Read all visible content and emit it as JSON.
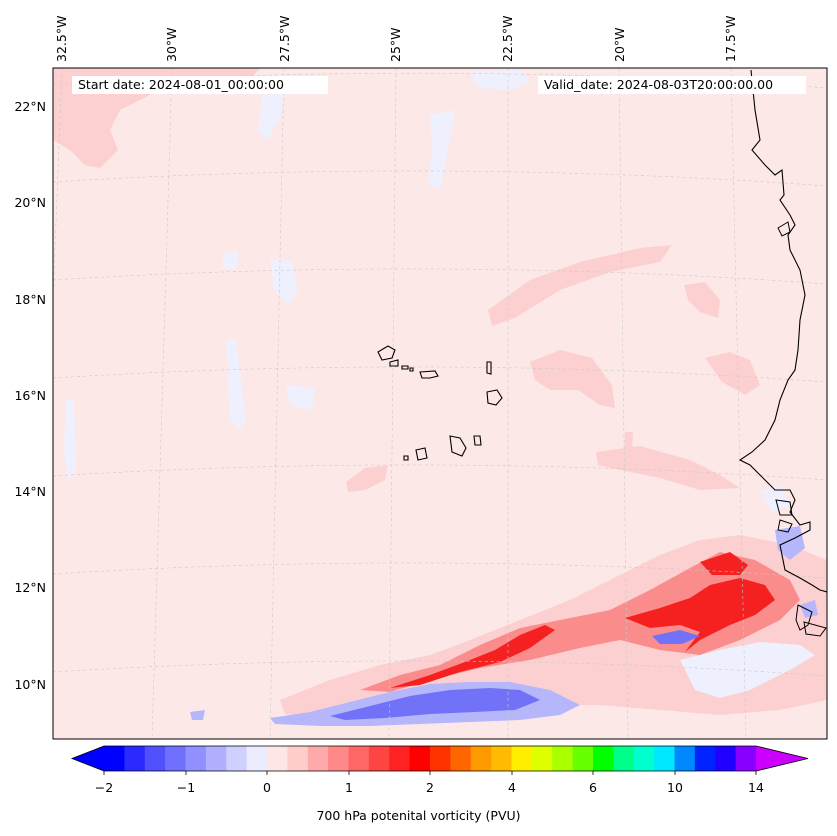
{
  "map": {
    "info": {
      "start_date": "Start date: 2024-08-01_00:00:00",
      "valid_date": "Valid_date: 2024-08-03T20:00:00.00"
    },
    "lon_labels": [
      "32.5°W",
      "30°W",
      "27.5°W",
      "25°W",
      "22.5°W",
      "20°W",
      "17.5°W"
    ],
    "lat_labels": [
      "22°N",
      "20°N",
      "18°N",
      "16°N",
      "14°N",
      "12°N",
      "10°N"
    ],
    "colors": {
      "background": "#fde8e8",
      "light_red": "#fcd0d0",
      "mid_red": "#fb8c8c",
      "red": "#f52020",
      "light_blue": "#eef0fe",
      "mid_blue": "#b6b6fb",
      "blue": "#7272f8",
      "coast": "#000000",
      "grid": "#c8c8c8"
    }
  },
  "colorbar": {
    "label": "700 hPa potenital vorticity (PVU)",
    "ticks": [
      "−2",
      "−1",
      "0",
      "1",
      "2",
      "4",
      "6",
      "10",
      "14"
    ],
    "colors": [
      "#0000ff",
      "#2a2aff",
      "#5050ff",
      "#7070ff",
      "#9090ff",
      "#b0b0ff",
      "#d0d0ff",
      "#ececff",
      "#ffe6e6",
      "#ffcccc",
      "#ffaaaa",
      "#ff8888",
      "#ff6666",
      "#ff4444",
      "#ff2222",
      "#ff0000",
      "#ff3300",
      "#ff6600",
      "#ff9900",
      "#ffbb00",
      "#ffee00",
      "#ddff00",
      "#aaff00",
      "#66ff00",
      "#00ff00",
      "#00ff88",
      "#00ffcc",
      "#00e8ff",
      "#0088ff",
      "#0022ff",
      "#2200ff",
      "#8800ff"
    ]
  }
}
